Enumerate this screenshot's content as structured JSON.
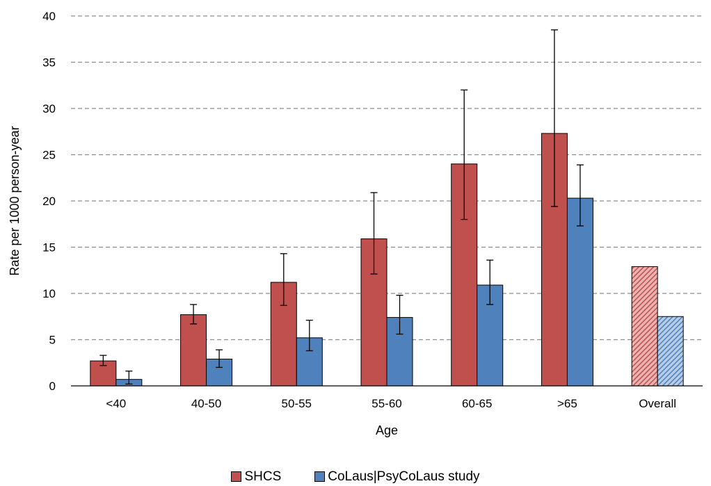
{
  "chart_data": {
    "type": "bar",
    "xlabel": "Age",
    "ylabel": "Rate per 1000 person-year",
    "ylim": [
      0,
      40
    ],
    "yticks": [
      "0",
      "5",
      "10",
      "15",
      "20",
      "25",
      "30",
      "35",
      "40"
    ],
    "grid": "horizontal dashed",
    "legend_position": "bottom",
    "categories": [
      "<40",
      "40-50",
      "50-55",
      "55-60",
      "60-65",
      ">65",
      "Overall"
    ],
    "series": [
      {
        "name": "SHCS",
        "color": "#c0504d",
        "values": [
          2.7,
          7.7,
          11.2,
          15.9,
          24.0,
          27.3,
          12.9
        ],
        "error_low": [
          2.2,
          6.7,
          8.7,
          12.1,
          18.0,
          19.4,
          null
        ],
        "error_high": [
          3.3,
          8.8,
          14.3,
          20.9,
          32.0,
          38.5,
          null
        ]
      },
      {
        "name": "CoLaus|PsyCoLaus study",
        "color": "#4f81bd",
        "values": [
          0.7,
          2.9,
          5.2,
          7.4,
          10.9,
          20.3,
          7.5
        ],
        "error_low": [
          0.2,
          2.0,
          3.8,
          5.6,
          8.8,
          17.3,
          null
        ],
        "error_high": [
          1.6,
          3.9,
          7.1,
          9.8,
          13.6,
          23.9,
          null
        ]
      }
    ],
    "hatched_categories": [
      "Overall"
    ]
  }
}
